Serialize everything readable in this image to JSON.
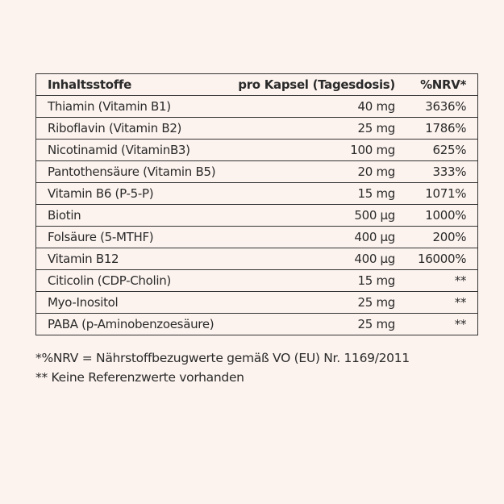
{
  "table": {
    "headers": [
      "Inhaltsstoffe",
      "pro Kapsel (Tagesdosis)",
      "%NRV*"
    ],
    "rows": [
      [
        "Thiamin (Vitamin B1)",
        "40 mg",
        "3636%"
      ],
      [
        "Riboflavin (Vitamin B2)",
        "25 mg",
        "1786%"
      ],
      [
        "Nicotinamid (VitaminB3)",
        "100 mg",
        "625%"
      ],
      [
        "Pantothensäure (Vitamin B5)",
        "20 mg",
        "333%"
      ],
      [
        "Vitamin B6 (P-5-P)",
        "15 mg",
        "1071%"
      ],
      [
        "Biotin",
        "500 µg",
        "1000%"
      ],
      [
        "Folsäure (5-MTHF)",
        "400 µg",
        "200%"
      ],
      [
        "Vitamin B12",
        "400 µg",
        "16000%"
      ],
      [
        "Citicolin (CDP-Cholin)",
        "15 mg",
        "**"
      ],
      [
        "Myo-Inositol",
        "25 mg",
        "**"
      ],
      [
        "PABA (p-Aminobenzoesäure)",
        "25 mg",
        "**"
      ]
    ]
  },
  "footnotes": [
    "*%NRV = Nährstoffbezugwerte gemäß VO (EU) Nr. 1169/2011",
    "** Keine Referenzwerte vorhanden"
  ]
}
